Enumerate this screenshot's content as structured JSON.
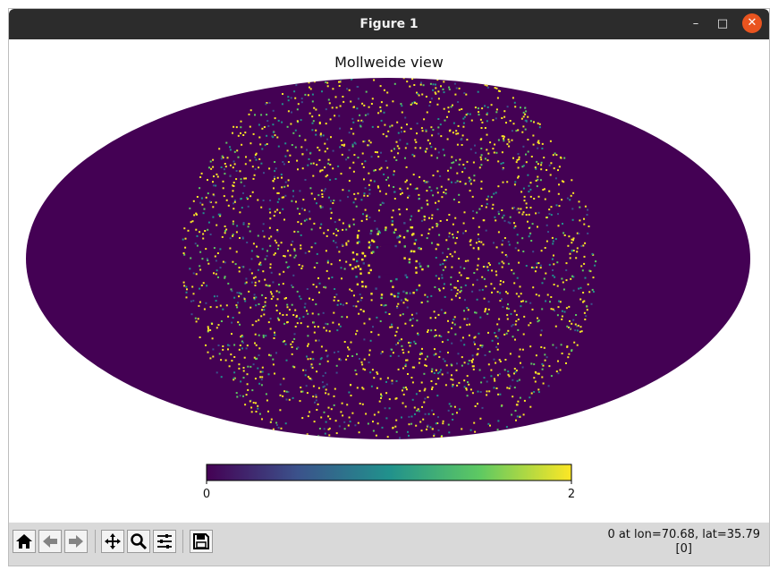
{
  "window": {
    "title": "Figure 1",
    "minimize_glyph": "–",
    "maximize_glyph": "□",
    "close_glyph": "✕"
  },
  "figure": {
    "title": "Mollweide view",
    "projection": "mollweide",
    "colormap": "viridis",
    "background_color": "#440154",
    "colorbar": {
      "min_label": "0",
      "max_label": "2",
      "range": [
        0,
        2
      ],
      "stops": [
        "#440154",
        "#3b528b",
        "#21918c",
        "#5ec962",
        "#fde725"
      ]
    }
  },
  "toolbar": {
    "buttons": [
      {
        "name": "home-button",
        "icon": "home-icon"
      },
      {
        "name": "back-button",
        "icon": "back-arrow-icon"
      },
      {
        "name": "forward-button",
        "icon": "forward-arrow-icon"
      },
      {
        "name": "pan-button",
        "icon": "move-icon"
      },
      {
        "name": "zoom-button",
        "icon": "magnifier-icon"
      },
      {
        "name": "configure-subplots-button",
        "icon": "sliders-icon"
      },
      {
        "name": "save-button",
        "icon": "floppy-icon"
      }
    ],
    "status_line1": "0 at lon=70.68, lat=35.79",
    "status_line2": "[0]"
  }
}
